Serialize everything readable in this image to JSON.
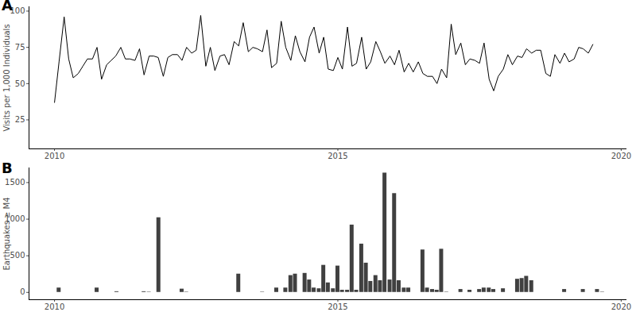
{
  "chart_data": [
    {
      "type": "line",
      "title": "A",
      "y_label": "Visits per 1,000 Individuals",
      "color": "#000000",
      "x": [
        2010,
        2010.08,
        2010.17,
        2010.25,
        2010.33,
        2010.42,
        2010.5,
        2010.58,
        2010.67,
        2010.75,
        2010.83,
        2010.92,
        2011,
        2011.08,
        2011.17,
        2011.25,
        2011.33,
        2011.42,
        2011.5,
        2011.58,
        2011.67,
        2011.75,
        2011.83,
        2011.92,
        2012,
        2012.08,
        2012.17,
        2012.25,
        2012.33,
        2012.42,
        2012.5,
        2012.58,
        2012.67,
        2012.75,
        2012.83,
        2012.92,
        2013,
        2013.08,
        2013.17,
        2013.25,
        2013.33,
        2013.42,
        2013.5,
        2013.58,
        2013.67,
        2013.75,
        2013.83,
        2013.92,
        2014,
        2014.08,
        2014.17,
        2014.25,
        2014.33,
        2014.42,
        2014.5,
        2014.58,
        2014.67,
        2014.75,
        2014.83,
        2014.92,
        2015,
        2015.08,
        2015.17,
        2015.25,
        2015.33,
        2015.42,
        2015.5,
        2015.58,
        2015.67,
        2015.75,
        2015.83,
        2015.92,
        2016,
        2016.08,
        2016.17,
        2016.25,
        2016.33,
        2016.42,
        2016.5,
        2016.58,
        2016.67,
        2016.75,
        2016.83,
        2016.92,
        2017,
        2017.08,
        2017.17,
        2017.25,
        2017.33,
        2017.42,
        2017.5,
        2017.58,
        2017.67,
        2017.75,
        2017.83,
        2017.92,
        2018,
        2018.08,
        2018.17,
        2018.25,
        2018.33,
        2018.42,
        2018.5,
        2018.58,
        2018.67,
        2018.75,
        2018.83,
        2018.92,
        2019,
        2019.08,
        2019.17,
        2019.25,
        2019.33,
        2019.42,
        2019.5
      ],
      "values": [
        37,
        65,
        96,
        67,
        54,
        57,
        62,
        67,
        67,
        75,
        53,
        63,
        66,
        69,
        75,
        67,
        67,
        66,
        74,
        56,
        69,
        69,
        68,
        55,
        68,
        70,
        70,
        66,
        75,
        71,
        73,
        97,
        62,
        75,
        59,
        69,
        70,
        63,
        79,
        76,
        92,
        72,
        75,
        74,
        72,
        87,
        61,
        64,
        93,
        75,
        66,
        83,
        72,
        65,
        82,
        89,
        71,
        82,
        60,
        59,
        68,
        60,
        89,
        62,
        64,
        82,
        60,
        65,
        79,
        72,
        64,
        69,
        63,
        73,
        58,
        64,
        58,
        65,
        57,
        55,
        55,
        50,
        60,
        54,
        91,
        70,
        78,
        63,
        67,
        66,
        64,
        78,
        53,
        45,
        55,
        60,
        70,
        63,
        69,
        68,
        74,
        71,
        73,
        73,
        57,
        55,
        70,
        64,
        71,
        65,
        67,
        75,
        74,
        71,
        77
      ],
      "xlim": [
        2009.55,
        2020.1
      ],
      "xticks": [
        2010,
        2015,
        2020
      ],
      "ylim": [
        5,
        103
      ],
      "yticks": [
        25,
        50,
        75,
        100
      ]
    },
    {
      "type": "bar",
      "title": "B",
      "y_label": "Earthquakes ≥ M4",
      "color": "#404040",
      "x": [
        2010.08,
        2010.75,
        2011.1,
        2011.58,
        2011.67,
        2011.84,
        2012.25,
        2012.33,
        2013.25,
        2013.67,
        2013.92,
        2014.08,
        2014.17,
        2014.25,
        2014.42,
        2014.5,
        2014.58,
        2014.67,
        2014.75,
        2014.83,
        2014.92,
        2015,
        2015.08,
        2015.17,
        2015.25,
        2015.33,
        2015.42,
        2015.5,
        2015.58,
        2015.67,
        2015.75,
        2015.83,
        2015.92,
        2016,
        2016.08,
        2016.17,
        2016.25,
        2016.5,
        2016.58,
        2016.67,
        2016.75,
        2016.83,
        2016.92,
        2017.17,
        2017.33,
        2017.5,
        2017.58,
        2017.67,
        2017.75,
        2017.92,
        2018.17,
        2018.25,
        2018.33,
        2018.42,
        2019,
        2019.33,
        2019.58,
        2019.67
      ],
      "values": [
        60,
        60,
        10,
        10,
        5,
        1020,
        45,
        5,
        250,
        5,
        60,
        60,
        230,
        250,
        260,
        170,
        60,
        50,
        370,
        130,
        50,
        360,
        30,
        30,
        920,
        30,
        660,
        400,
        150,
        230,
        160,
        1630,
        170,
        1350,
        160,
        60,
        60,
        580,
        60,
        40,
        30,
        590,
        5,
        40,
        30,
        40,
        60,
        60,
        40,
        50,
        180,
        190,
        220,
        160,
        40,
        40,
        40,
        5
      ],
      "xlim": [
        2009.55,
        2020.1
      ],
      "xticks": [
        2010,
        2015,
        2020
      ],
      "ylim": [
        -100,
        1700
      ],
      "yticks": [
        0,
        500,
        1000,
        1500
      ]
    }
  ]
}
